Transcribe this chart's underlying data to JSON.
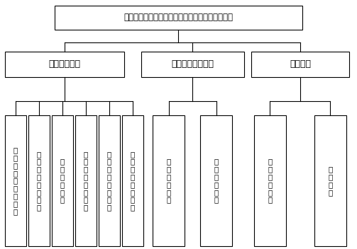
{
  "title": "基于三维库容分析预测技术的智能填埋场管理系统",
  "level1": [
    "业务管理模块",
    "日常运营管理模块",
    "应急模块"
  ],
  "level2_biz": [
    "填埋场作业\n管理系统",
    "作业车辆\n监管系统",
    "视频监控\n系统",
    "污染排放\n监测系统",
    "垃圾稳定\n监控系统",
    "日常办公\n管理系统"
  ],
  "level2_ops": [
    "公共服务\n系统",
    "日常调度\n系统"
  ],
  "level2_emg": [
    "应急指挥\n系统",
    "中控建设"
  ],
  "bg_color": "#ffffff",
  "box_edge_color": "#000000",
  "box_fill_color": "#ffffff",
  "font_color": "#000000",
  "title_font_size": 8.5,
  "l1_font_size": 9,
  "l2_font_size": 7.5
}
